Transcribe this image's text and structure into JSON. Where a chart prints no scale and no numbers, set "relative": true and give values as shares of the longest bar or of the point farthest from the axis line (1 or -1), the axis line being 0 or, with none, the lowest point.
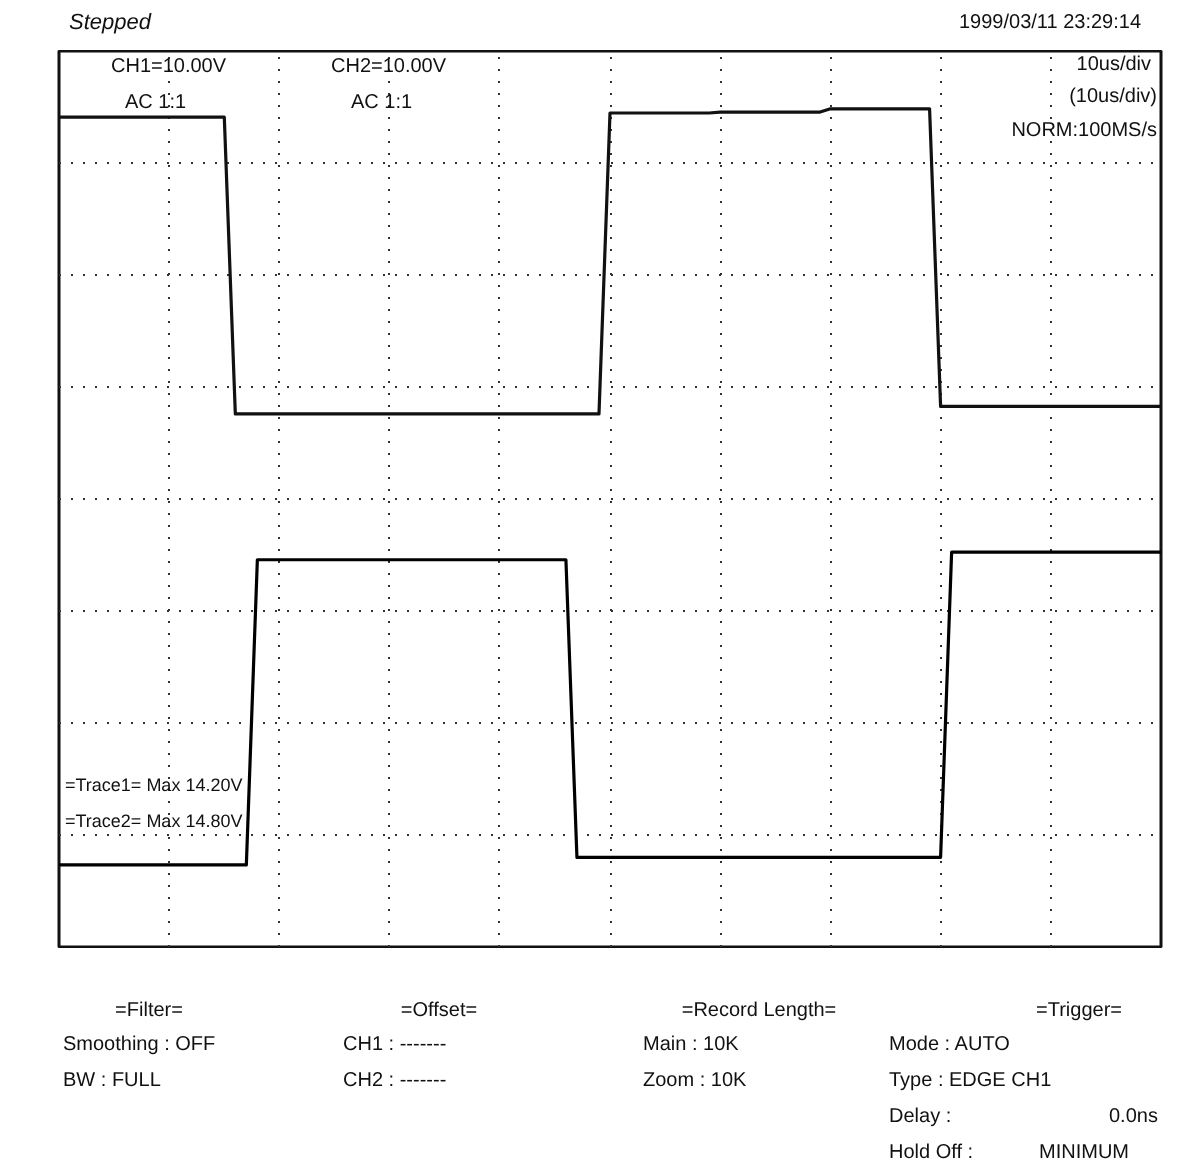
{
  "chart_data": {
    "type": "line",
    "title": "Stepped",
    "subtitle": "1999/03/11 23:29:14",
    "relative": true,
    "tick_labels": false,
    "grid": true,
    "line_style": "solid",
    "marker": "none",
    "categories": [
      null,
      null,
      null,
      null,
      null,
      null,
      null,
      null,
      null,
      null,
      null,
      null,
      null,
      null,
      null,
      null,
      null,
      null,
      null,
      null,
      null,
      null,
      null,
      null,
      null,
      null,
      null,
      null,
      null,
      null,
      null,
      null,
      null,
      null,
      null,
      null,
      null,
      null,
      null,
      null,
      null,
      null,
      null,
      null,
      null,
      null,
      null,
      null,
      null,
      null,
      null,
      null,
      null,
      null,
      null,
      null,
      null,
      null,
      null,
      null,
      null,
      null,
      null,
      null,
      null,
      null,
      null,
      null,
      null,
      null,
      null,
      null,
      null,
      null,
      null,
      null,
      null,
      null,
      null,
      null,
      null,
      null,
      null,
      null,
      null,
      null,
      null,
      null,
      null,
      null,
      null,
      null,
      null,
      null,
      null,
      null,
      null,
      null,
      null,
      null,
      null
    ],
    "series": [
      {
        "color": "#111111",
        "values": [
          0.99,
          0.99,
          0.99,
          0.99,
          0.99,
          0.99,
          0.99,
          0.99,
          0.99,
          0.99,
          0.99,
          0.99,
          0.99,
          0.99,
          0.99,
          0.99,
          0.636,
          0.636,
          0.636,
          0.636,
          0.636,
          0.636,
          0.636,
          0.636,
          0.636,
          0.636,
          0.636,
          0.636,
          0.636,
          0.636,
          0.636,
          0.636,
          0.636,
          0.636,
          0.636,
          0.636,
          0.636,
          0.636,
          0.636,
          0.636,
          0.636,
          0.636,
          0.636,
          0.636,
          0.636,
          0.636,
          0.636,
          0.636,
          0.636,
          0.636,
          0.995,
          0.995,
          0.995,
          0.995,
          0.995,
          0.995,
          0.995,
          0.995,
          0.995,
          0.995,
          0.996,
          0.996,
          0.996,
          0.996,
          0.996,
          0.996,
          0.996,
          0.996,
          0.996,
          0.996,
          1.0,
          1.0,
          1.0,
          1.0,
          1.0,
          1.0,
          1.0,
          1.0,
          1.0,
          1.0,
          0.645,
          0.645,
          0.645,
          0.645,
          0.645,
          0.645,
          0.645,
          0.645,
          0.645,
          0.645,
          0.645,
          0.645,
          0.645,
          0.645,
          0.645,
          0.645,
          0.645,
          0.645,
          0.645,
          0.645,
          0.645
        ]
      },
      {
        "color": "#000000",
        "values": [
          0.098,
          0.098,
          0.098,
          0.098,
          0.098,
          0.098,
          0.098,
          0.098,
          0.098,
          0.098,
          0.098,
          0.098,
          0.098,
          0.098,
          0.098,
          0.098,
          0.098,
          0.098,
          0.462,
          0.462,
          0.462,
          0.462,
          0.462,
          0.462,
          0.462,
          0.462,
          0.462,
          0.462,
          0.462,
          0.462,
          0.462,
          0.462,
          0.462,
          0.462,
          0.462,
          0.462,
          0.462,
          0.462,
          0.462,
          0.462,
          0.462,
          0.462,
          0.462,
          0.462,
          0.462,
          0.462,
          0.462,
          0.107,
          0.107,
          0.107,
          0.107,
          0.107,
          0.107,
          0.107,
          0.107,
          0.107,
          0.107,
          0.107,
          0.107,
          0.107,
          0.107,
          0.107,
          0.107,
          0.107,
          0.107,
          0.107,
          0.107,
          0.107,
          0.107,
          0.107,
          0.107,
          0.107,
          0.107,
          0.107,
          0.107,
          0.107,
          0.107,
          0.107,
          0.107,
          0.107,
          0.107,
          0.471,
          0.471,
          0.471,
          0.471,
          0.471,
          0.471,
          0.471,
          0.471,
          0.471,
          0.471,
          0.471,
          0.471,
          0.471,
          0.471,
          0.471,
          0.471,
          0.471,
          0.471,
          0.471,
          0.471
        ]
      }
    ],
    "annotations": [
      "CH1=10.00V",
      "AC 1:1",
      "CH2=10.00V",
      "AC 1:1",
      "10us/div",
      "(10us/div)",
      "NORM:100MS/s",
      "=Trace1=  Max  14.20V",
      "=Trace2=  Max  14.80V",
      "=Filter=",
      "Smoothing : OFF",
      "BW : FULL",
      "=Offset=",
      "CH1 : -------",
      "CH2 : -------",
      "=Record Length=",
      "Main :  10K",
      "Zoom :  10K",
      "=Trigger=",
      "Mode : AUTO",
      "Type : EDGE CH1",
      "Delay :",
      "0.0ns",
      "Hold Off :",
      "MINIMUM"
    ]
  }
}
